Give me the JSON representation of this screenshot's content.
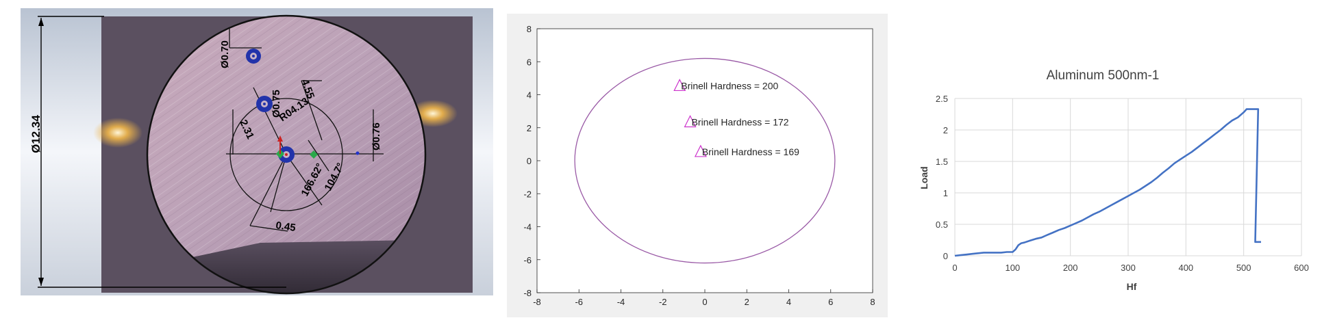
{
  "colors": {
    "marker": "#cc33cc",
    "ellipse": "#9a5aa6",
    "line_series": "#4472c4",
    "hole_ring": "#2233aa"
  },
  "panel_photo": {
    "diameter_label": "Ø12.34",
    "annotations": [
      {
        "id": "d070",
        "text": "Ø0.70"
      },
      {
        "id": "d075",
        "text": "Ø0.75"
      },
      {
        "id": "l455",
        "text": "4.55"
      },
      {
        "id": "r413",
        "text": "R04.13"
      },
      {
        "id": "d231",
        "text": "2.31"
      },
      {
        "id": "d076",
        "text": "Ø0.76"
      },
      {
        "id": "a166",
        "text": "166.62°"
      },
      {
        "id": "a104",
        "text": "104.7°"
      },
      {
        "id": "d045",
        "text": "0.45"
      }
    ]
  },
  "chart_data": [
    {
      "type": "scatter",
      "xlim": [
        -8,
        8
      ],
      "ylim": [
        -8,
        8
      ],
      "x_ticks": [
        -8,
        -6,
        -4,
        -2,
        0,
        2,
        4,
        6,
        8
      ],
      "y_ticks": [
        -8,
        -6,
        -4,
        -2,
        0,
        2,
        4,
        6,
        8
      ],
      "grid": false,
      "points": [
        {
          "x": -1.2,
          "y": 4.5,
          "label": "Brinell Hardness = 200"
        },
        {
          "x": -0.7,
          "y": 2.3,
          "label": "Brinell Hardness = 172"
        },
        {
          "x": -0.2,
          "y": 0.5,
          "label": "Brinell Hardness = 169"
        }
      ],
      "ellipse": {
        "cx": 0,
        "cy": 0,
        "rx": 6.2,
        "ry": 6.2
      }
    },
    {
      "type": "line",
      "title": "Aluminum 500nm-1",
      "xlabel": "Hf",
      "ylabel": "Load",
      "xlim": [
        0,
        600
      ],
      "ylim": [
        0,
        2.5
      ],
      "x_ticks": [
        0,
        100,
        200,
        300,
        400,
        500,
        600
      ],
      "y_ticks": [
        0,
        0.5,
        1,
        1.5,
        2,
        2.5
      ],
      "y_tick_labels": [
        "0",
        "0.5",
        "1",
        "1.5",
        "2",
        "2.5"
      ],
      "grid": true,
      "series": [
        {
          "x": [
            0,
            10,
            20,
            30,
            40,
            50,
            60,
            70,
            80,
            90,
            100,
            105,
            110,
            115,
            120,
            130,
            140,
            150,
            160,
            170,
            180,
            190,
            200,
            210,
            220,
            230,
            240,
            250,
            260,
            270,
            280,
            290,
            300,
            310,
            320,
            330,
            340,
            350,
            360,
            370,
            380,
            390,
            400,
            410,
            420,
            430,
            440,
            450,
            460,
            470,
            480,
            490,
            500,
            505,
            510,
            515,
            520,
            525,
            520,
            522,
            530
          ],
          "y": [
            0,
            0.01,
            0.02,
            0.03,
            0.04,
            0.05,
            0.05,
            0.05,
            0.05,
            0.06,
            0.06,
            0.1,
            0.17,
            0.2,
            0.21,
            0.24,
            0.27,
            0.29,
            0.33,
            0.37,
            0.41,
            0.44,
            0.48,
            0.52,
            0.56,
            0.61,
            0.66,
            0.7,
            0.75,
            0.8,
            0.85,
            0.9,
            0.95,
            1.0,
            1.05,
            1.11,
            1.17,
            1.24,
            1.32,
            1.39,
            1.47,
            1.53,
            1.59,
            1.65,
            1.72,
            1.79,
            1.86,
            1.93,
            2.0,
            2.08,
            2.15,
            2.2,
            2.28,
            2.33,
            2.33,
            2.33,
            2.33,
            2.33,
            0.22,
            0.22,
            0.22
          ]
        }
      ]
    }
  ]
}
